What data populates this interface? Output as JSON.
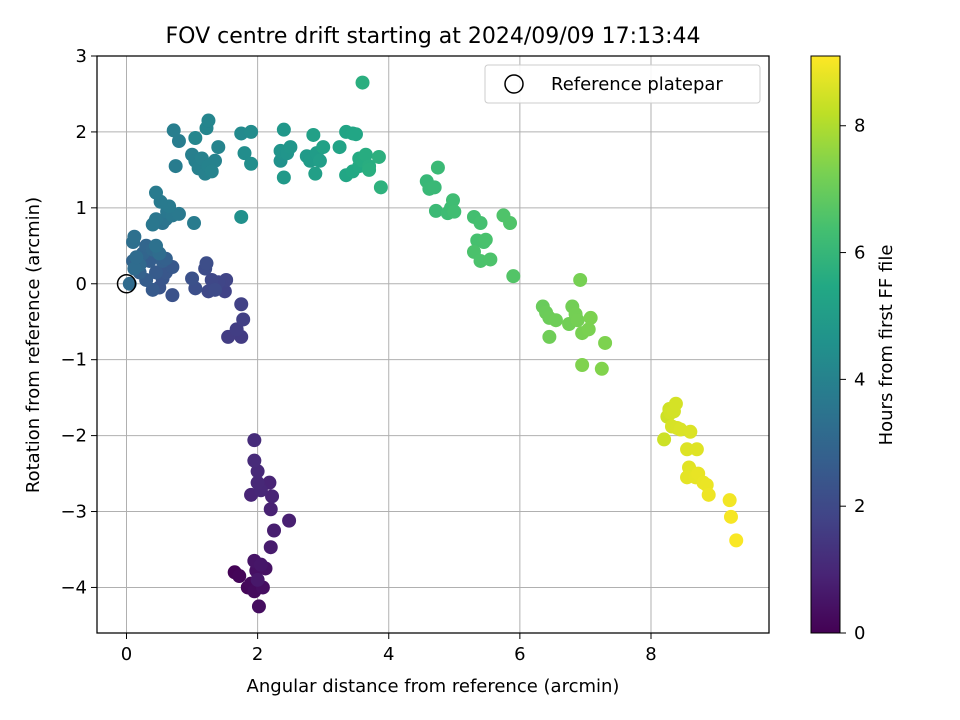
{
  "chart_data": {
    "type": "scatter",
    "title": "FOV centre drift starting at 2024/09/09 17:13:44",
    "xlabel": "Angular distance from reference (arcmin)",
    "ylabel": "Rotation from reference (arcmin)",
    "xlim": [
      -0.45,
      9.8
    ],
    "ylim": [
      -4.6,
      3.0
    ],
    "xticks": [
      "0",
      "2",
      "4",
      "6",
      "8"
    ],
    "yticks": [
      "3",
      "2",
      "1",
      "0",
      "−1",
      "−2",
      "−3",
      "−4"
    ],
    "grid": true,
    "legend": {
      "position": "top-right",
      "entries": [
        {
          "label": "Reference platepar",
          "marker": "open-circle"
        }
      ]
    },
    "reference_point": {
      "x": 0,
      "y": 0
    },
    "colorbar": {
      "label": "Hours from first FF file",
      "colormap": "viridis",
      "range": [
        0,
        9.1
      ],
      "ticks": [
        "0",
        "2",
        "4",
        "6",
        "8"
      ]
    },
    "points": [
      {
        "x": 1.65,
        "y": -3.8,
        "c": 0.05
      },
      {
        "x": 1.72,
        "y": -3.85,
        "c": 0.1
      },
      {
        "x": 1.85,
        "y": -4.0,
        "c": 0.15
      },
      {
        "x": 1.9,
        "y": -3.95,
        "c": 0.2
      },
      {
        "x": 1.95,
        "y": -4.05,
        "c": 0.25
      },
      {
        "x": 2.02,
        "y": -4.25,
        "c": 0.3
      },
      {
        "x": 2.08,
        "y": -4.0,
        "c": 0.35
      },
      {
        "x": 1.98,
        "y": -3.78,
        "c": 0.4
      },
      {
        "x": 2.12,
        "y": -3.75,
        "c": 0.45
      },
      {
        "x": 1.95,
        "y": -3.65,
        "c": 0.5
      },
      {
        "x": 2.05,
        "y": -3.7,
        "c": 0.55
      },
      {
        "x": 2.0,
        "y": -3.9,
        "c": 0.6
      },
      {
        "x": 2.2,
        "y": -3.47,
        "c": 0.7
      },
      {
        "x": 2.25,
        "y": -3.25,
        "c": 0.75
      },
      {
        "x": 2.48,
        "y": -3.12,
        "c": 0.8
      },
      {
        "x": 2.2,
        "y": -2.97,
        "c": 0.85
      },
      {
        "x": 2.22,
        "y": -2.8,
        "c": 0.9
      },
      {
        "x": 2.18,
        "y": -2.62,
        "c": 0.92
      },
      {
        "x": 1.9,
        "y": -2.78,
        "c": 0.95
      },
      {
        "x": 2.05,
        "y": -2.72,
        "c": 1.0
      },
      {
        "x": 2.0,
        "y": -2.62,
        "c": 1.02
      },
      {
        "x": 2.0,
        "y": -2.47,
        "c": 1.05
      },
      {
        "x": 1.95,
        "y": -2.33,
        "c": 1.1
      },
      {
        "x": 1.95,
        "y": -2.06,
        "c": 1.15
      },
      {
        "x": 1.75,
        "y": -0.7,
        "c": 1.6
      },
      {
        "x": 1.55,
        "y": -0.7,
        "c": 1.62
      },
      {
        "x": 1.68,
        "y": -0.6,
        "c": 1.65
      },
      {
        "x": 1.78,
        "y": -0.47,
        "c": 1.7
      },
      {
        "x": 1.75,
        "y": -0.27,
        "c": 1.75
      },
      {
        "x": 1.5,
        "y": -0.1,
        "c": 1.8
      },
      {
        "x": 1.52,
        "y": 0.05,
        "c": 1.85
      },
      {
        "x": 1.4,
        "y": 0.02,
        "c": 1.9
      },
      {
        "x": 1.3,
        "y": 0.05,
        "c": 1.95
      },
      {
        "x": 1.25,
        "y": -0.1,
        "c": 2.0
      },
      {
        "x": 1.35,
        "y": -0.08,
        "c": 2.05
      },
      {
        "x": 1.2,
        "y": 0.2,
        "c": 2.1
      },
      {
        "x": 1.22,
        "y": 0.27,
        "c": 2.15
      },
      {
        "x": 1.05,
        "y": -0.06,
        "c": 2.2
      },
      {
        "x": 1.0,
        "y": 0.07,
        "c": 2.25
      },
      {
        "x": 0.7,
        "y": -0.15,
        "c": 2.3
      },
      {
        "x": 0.5,
        "y": -0.05,
        "c": 2.35
      },
      {
        "x": 0.55,
        "y": 0.07,
        "c": 2.4
      },
      {
        "x": 0.6,
        "y": 0.15,
        "c": 2.45
      },
      {
        "x": 0.7,
        "y": 0.22,
        "c": 2.5
      },
      {
        "x": 0.4,
        "y": -0.08,
        "c": 2.55
      },
      {
        "x": 0.45,
        "y": 0.15,
        "c": 2.6
      },
      {
        "x": 0.3,
        "y": 0.05,
        "c": 2.65
      },
      {
        "x": 0.35,
        "y": 0.3,
        "c": 2.7
      },
      {
        "x": 0.55,
        "y": 0.3,
        "c": 2.75
      },
      {
        "x": 0.6,
        "y": 0.33,
        "c": 2.8
      },
      {
        "x": 0.2,
        "y": 0.15,
        "c": 2.85
      },
      {
        "x": 0.1,
        "y": 0.3,
        "c": 2.9
      },
      {
        "x": 0.25,
        "y": 0.4,
        "c": 2.95
      },
      {
        "x": 0.3,
        "y": 0.5,
        "c": 3.0
      },
      {
        "x": 0.4,
        "y": 0.45,
        "c": 3.05
      },
      {
        "x": 0.2,
        "y": 0.25,
        "c": 3.1
      },
      {
        "x": 0.05,
        "y": 0.0,
        "c": 3.15
      },
      {
        "x": 0.12,
        "y": 0.2,
        "c": 3.2
      },
      {
        "x": 0.15,
        "y": 0.35,
        "c": 3.22
      },
      {
        "x": 0.5,
        "y": 0.4,
        "c": 3.25
      },
      {
        "x": 0.1,
        "y": 0.55,
        "c": 3.3
      },
      {
        "x": 0.12,
        "y": 0.62,
        "c": 3.35
      },
      {
        "x": 0.45,
        "y": 0.5,
        "c": 3.4
      },
      {
        "x": 0.55,
        "y": 0.8,
        "c": 3.45
      },
      {
        "x": 0.6,
        "y": 0.85,
        "c": 3.5
      },
      {
        "x": 0.45,
        "y": 0.85,
        "c": 3.55
      },
      {
        "x": 0.4,
        "y": 0.78,
        "c": 3.6
      },
      {
        "x": 0.62,
        "y": 0.95,
        "c": 3.62
      },
      {
        "x": 0.7,
        "y": 0.9,
        "c": 3.65
      },
      {
        "x": 0.8,
        "y": 0.92,
        "c": 3.68
      },
      {
        "x": 0.65,
        "y": 1.02,
        "c": 3.7
      },
      {
        "x": 0.52,
        "y": 1.08,
        "c": 3.72
      },
      {
        "x": 0.45,
        "y": 1.2,
        "c": 3.75
      },
      {
        "x": 1.03,
        "y": 0.8,
        "c": 3.78
      },
      {
        "x": 0.75,
        "y": 1.55,
        "c": 3.8
      },
      {
        "x": 0.8,
        "y": 1.88,
        "c": 3.82
      },
      {
        "x": 0.72,
        "y": 2.02,
        "c": 3.85
      },
      {
        "x": 1.0,
        "y": 1.7,
        "c": 3.88
      },
      {
        "x": 1.05,
        "y": 1.62,
        "c": 3.9
      },
      {
        "x": 1.1,
        "y": 1.52,
        "c": 3.92
      },
      {
        "x": 1.15,
        "y": 1.65,
        "c": 3.95
      },
      {
        "x": 1.2,
        "y": 1.45,
        "c": 3.98
      },
      {
        "x": 1.25,
        "y": 1.55,
        "c": 4.0
      },
      {
        "x": 1.35,
        "y": 1.62,
        "c": 4.02
      },
      {
        "x": 1.3,
        "y": 1.48,
        "c": 4.05
      },
      {
        "x": 1.4,
        "y": 1.8,
        "c": 4.08
      },
      {
        "x": 1.22,
        "y": 2.05,
        "c": 4.1
      },
      {
        "x": 1.25,
        "y": 2.15,
        "c": 4.12
      },
      {
        "x": 1.05,
        "y": 1.92,
        "c": 4.15
      },
      {
        "x": 1.75,
        "y": 1.98,
        "c": 4.3
      },
      {
        "x": 1.9,
        "y": 2.0,
        "c": 4.35
      },
      {
        "x": 1.8,
        "y": 1.72,
        "c": 4.4
      },
      {
        "x": 1.9,
        "y": 1.58,
        "c": 4.45
      },
      {
        "x": 1.75,
        "y": 0.88,
        "c": 4.5
      },
      {
        "x": 2.35,
        "y": 1.62,
        "c": 4.6
      },
      {
        "x": 2.35,
        "y": 1.75,
        "c": 4.65
      },
      {
        "x": 2.45,
        "y": 1.72,
        "c": 4.7
      },
      {
        "x": 2.5,
        "y": 1.8,
        "c": 4.75
      },
      {
        "x": 2.4,
        "y": 2.03,
        "c": 4.8
      },
      {
        "x": 2.4,
        "y": 1.4,
        "c": 4.85
      },
      {
        "x": 2.75,
        "y": 1.68,
        "c": 4.9
      },
      {
        "x": 2.8,
        "y": 1.62,
        "c": 4.95
      },
      {
        "x": 2.9,
        "y": 1.72,
        "c": 5.0
      },
      {
        "x": 2.95,
        "y": 1.62,
        "c": 5.05
      },
      {
        "x": 2.88,
        "y": 1.45,
        "c": 5.1
      },
      {
        "x": 2.85,
        "y": 1.96,
        "c": 5.15
      },
      {
        "x": 3.0,
        "y": 1.8,
        "c": 5.2
      },
      {
        "x": 3.25,
        "y": 1.8,
        "c": 5.25
      },
      {
        "x": 3.35,
        "y": 2.0,
        "c": 5.3
      },
      {
        "x": 3.45,
        "y": 1.98,
        "c": 5.35
      },
      {
        "x": 3.5,
        "y": 1.97,
        "c": 5.38
      },
      {
        "x": 3.35,
        "y": 1.43,
        "c": 5.4
      },
      {
        "x": 3.45,
        "y": 1.48,
        "c": 5.45
      },
      {
        "x": 3.55,
        "y": 1.55,
        "c": 5.5
      },
      {
        "x": 3.55,
        "y": 1.65,
        "c": 5.55
      },
      {
        "x": 3.6,
        "y": 1.62,
        "c": 5.58
      },
      {
        "x": 3.65,
        "y": 1.7,
        "c": 5.62
      },
      {
        "x": 3.7,
        "y": 1.55,
        "c": 5.65
      },
      {
        "x": 3.7,
        "y": 1.5,
        "c": 5.68
      },
      {
        "x": 3.6,
        "y": 2.65,
        "c": 5.7
      },
      {
        "x": 3.85,
        "y": 1.67,
        "c": 5.75
      },
      {
        "x": 3.88,
        "y": 1.27,
        "c": 5.8
      },
      {
        "x": 4.58,
        "y": 1.35,
        "c": 6.05
      },
      {
        "x": 4.62,
        "y": 1.25,
        "c": 6.08
      },
      {
        "x": 4.7,
        "y": 1.27,
        "c": 6.1
      },
      {
        "x": 4.75,
        "y": 1.53,
        "c": 6.12
      },
      {
        "x": 4.72,
        "y": 0.96,
        "c": 6.15
      },
      {
        "x": 4.9,
        "y": 0.93,
        "c": 6.2
      },
      {
        "x": 4.95,
        "y": 1.0,
        "c": 6.22
      },
      {
        "x": 4.98,
        "y": 1.1,
        "c": 6.25
      },
      {
        "x": 5.0,
        "y": 0.95,
        "c": 6.28
      },
      {
        "x": 5.3,
        "y": 0.88,
        "c": 6.35
      },
      {
        "x": 5.4,
        "y": 0.8,
        "c": 6.38
      },
      {
        "x": 5.35,
        "y": 0.57,
        "c": 6.4
      },
      {
        "x": 5.45,
        "y": 0.55,
        "c": 6.42
      },
      {
        "x": 5.48,
        "y": 0.58,
        "c": 6.45
      },
      {
        "x": 5.3,
        "y": 0.42,
        "c": 6.48
      },
      {
        "x": 5.4,
        "y": 0.3,
        "c": 6.5
      },
      {
        "x": 5.55,
        "y": 0.32,
        "c": 6.52
      },
      {
        "x": 5.75,
        "y": 0.9,
        "c": 6.55
      },
      {
        "x": 5.85,
        "y": 0.8,
        "c": 6.58
      },
      {
        "x": 5.9,
        "y": 0.1,
        "c": 6.62
      },
      {
        "x": 6.35,
        "y": -0.3,
        "c": 7.0
      },
      {
        "x": 6.4,
        "y": -0.38,
        "c": 7.02
      },
      {
        "x": 6.45,
        "y": -0.45,
        "c": 7.05
      },
      {
        "x": 6.55,
        "y": -0.48,
        "c": 7.08
      },
      {
        "x": 6.45,
        "y": -0.7,
        "c": 7.1
      },
      {
        "x": 6.75,
        "y": -0.53,
        "c": 7.12
      },
      {
        "x": 6.8,
        "y": -0.3,
        "c": 7.15
      },
      {
        "x": 6.85,
        "y": -0.4,
        "c": 7.18
      },
      {
        "x": 6.88,
        "y": -0.48,
        "c": 7.2
      },
      {
        "x": 6.92,
        "y": 0.05,
        "c": 7.22
      },
      {
        "x": 6.95,
        "y": -0.65,
        "c": 7.25
      },
      {
        "x": 7.05,
        "y": -0.6,
        "c": 7.28
      },
      {
        "x": 7.08,
        "y": -0.45,
        "c": 7.3
      },
      {
        "x": 7.3,
        "y": -0.78,
        "c": 7.32
      },
      {
        "x": 6.95,
        "y": -1.07,
        "c": 7.35
      },
      {
        "x": 7.25,
        "y": -1.12,
        "c": 7.38
      },
      {
        "x": 8.2,
        "y": -2.05,
        "c": 8.4
      },
      {
        "x": 8.25,
        "y": -1.75,
        "c": 8.42
      },
      {
        "x": 8.28,
        "y": -1.65,
        "c": 8.45
      },
      {
        "x": 8.3,
        "y": -1.7,
        "c": 8.48
      },
      {
        "x": 8.35,
        "y": -1.68,
        "c": 8.5
      },
      {
        "x": 8.38,
        "y": -1.58,
        "c": 8.52
      },
      {
        "x": 8.32,
        "y": -1.88,
        "c": 8.55
      },
      {
        "x": 8.4,
        "y": -1.9,
        "c": 8.58
      },
      {
        "x": 8.45,
        "y": -1.92,
        "c": 8.6
      },
      {
        "x": 8.6,
        "y": -1.95,
        "c": 8.62
      },
      {
        "x": 8.55,
        "y": -2.18,
        "c": 8.65
      },
      {
        "x": 8.7,
        "y": -2.18,
        "c": 8.68
      },
      {
        "x": 8.58,
        "y": -2.42,
        "c": 8.7
      },
      {
        "x": 8.62,
        "y": -2.48,
        "c": 8.72
      },
      {
        "x": 8.55,
        "y": -2.55,
        "c": 8.75
      },
      {
        "x": 8.68,
        "y": -2.55,
        "c": 8.78
      },
      {
        "x": 8.72,
        "y": -2.5,
        "c": 8.8
      },
      {
        "x": 8.8,
        "y": -2.62,
        "c": 8.82
      },
      {
        "x": 8.85,
        "y": -2.65,
        "c": 8.85
      },
      {
        "x": 8.88,
        "y": -2.78,
        "c": 8.88
      },
      {
        "x": 9.2,
        "y": -2.85,
        "c": 8.95
      },
      {
        "x": 9.22,
        "y": -3.07,
        "c": 9.0
      },
      {
        "x": 9.3,
        "y": -3.38,
        "c": 9.05
      }
    ]
  }
}
